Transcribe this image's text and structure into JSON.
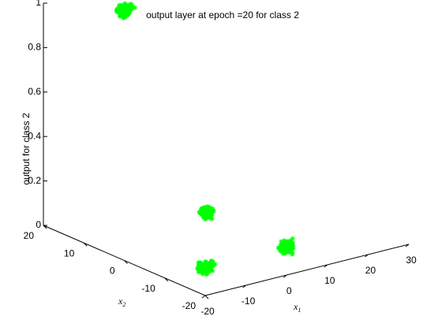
{
  "chart_data": {
    "type": "scatter",
    "projection": "3d",
    "title": "output layer at epoch =20 for class 2",
    "xlabel": "x",
    "xlabel_subscript": "1",
    "ylabel": "x",
    "ylabel_subscript": "2",
    "zlabel": "output for class 2",
    "xlim": [
      -20,
      30
    ],
    "ylim": [
      -20,
      20
    ],
    "zlim": [
      0,
      1
    ],
    "xticks": [
      -20,
      -10,
      0,
      10,
      20,
      30
    ],
    "yticks": [
      -20,
      -10,
      0,
      10,
      20
    ],
    "zticks": [
      0,
      0.2,
      0.4,
      0.6,
      0.8,
      1
    ],
    "ztick_labels": [
      "0",
      "0.2",
      "0.4",
      "0.6",
      "0.8",
      "1"
    ],
    "grid": false,
    "marker": "asterisk",
    "series": [
      {
        "color": "#00ff00",
        "clusters": [
          {
            "x": -10,
            "y": 10,
            "z": 1
          },
          {
            "x": 10,
            "y": 10,
            "z": 0
          },
          {
            "x": -10,
            "y": -10,
            "z": 0
          },
          {
            "x": 10,
            "y": -10,
            "z": 0
          }
        ]
      }
    ]
  }
}
